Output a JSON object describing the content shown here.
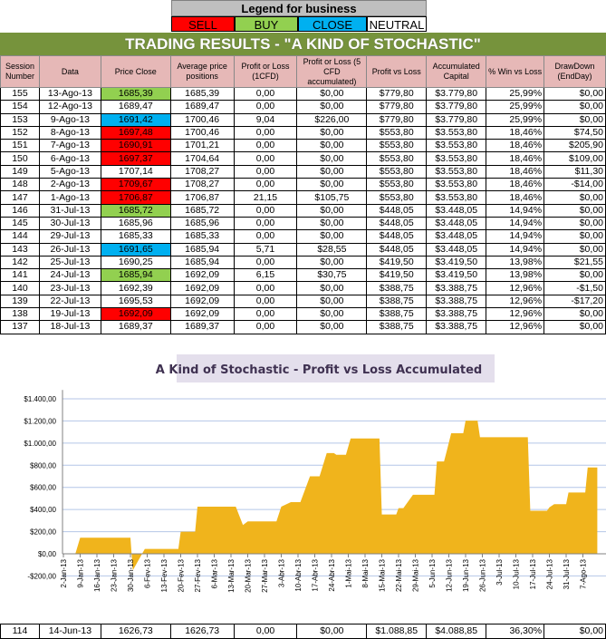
{
  "legend": {
    "title": "Legend for business",
    "items": [
      {
        "label": "SELL",
        "color": "#ff0000"
      },
      {
        "label": "BUY",
        "color": "#92d050"
      },
      {
        "label": "CLOSE",
        "color": "#00b0f0"
      },
      {
        "label": "NEUTRAL",
        "color": "#ffffff"
      }
    ]
  },
  "title": "TRADING RESULTS - \"A KIND OF STOCHASTIC\"",
  "headers": [
    "Session Number",
    "Data",
    "Price Close",
    "Average price positions",
    "Profit or Loss (1CFD)",
    "Profit or Loss (5 CFD accumulated)",
    "Profit vs Loss",
    "Accumulated Capital",
    "% Win vs Loss",
    "DrawDown (EndDay)"
  ],
  "rows": [
    {
      "cells": [
        "155",
        "13-Ago-13",
        "1685,39",
        "1685,39",
        "0,00",
        "$0,00",
        "$779,80",
        "$3.779,80",
        "25,99%",
        "$0,00"
      ],
      "signal": "BUY"
    },
    {
      "cells": [
        "154",
        "12-Ago-13",
        "1689,47",
        "1689,47",
        "0,00",
        "$0,00",
        "$779,80",
        "$3.779,80",
        "25,99%",
        "$0,00"
      ],
      "signal": "NEUTRAL"
    },
    {
      "cells": [
        "153",
        "9-Ago-13",
        "1691,42",
        "1700,46",
        "9,04",
        "$226,00",
        "$779,80",
        "$3.779,80",
        "25,99%",
        "$0,00"
      ],
      "signal": "CLOSE"
    },
    {
      "cells": [
        "152",
        "8-Ago-13",
        "1697,48",
        "1700,46",
        "0,00",
        "$0,00",
        "$553,80",
        "$3.553,80",
        "18,46%",
        "$74,50"
      ],
      "signal": "SELL"
    },
    {
      "cells": [
        "151",
        "7-Ago-13",
        "1690,91",
        "1701,21",
        "0,00",
        "$0,00",
        "$553,80",
        "$3.553,80",
        "18,46%",
        "$205,90"
      ],
      "signal": "SELL"
    },
    {
      "cells": [
        "150",
        "6-Ago-13",
        "1697,37",
        "1704,64",
        "0,00",
        "$0,00",
        "$553,80",
        "$3.553,80",
        "18,46%",
        "$109,00"
      ],
      "signal": "SELL"
    },
    {
      "cells": [
        "149",
        "5-Ago-13",
        "1707,14",
        "1708,27",
        "0,00",
        "$0,00",
        "$553,80",
        "$3.553,80",
        "18,46%",
        "$11,30"
      ],
      "signal": "NEUTRAL"
    },
    {
      "cells": [
        "148",
        "2-Ago-13",
        "1709,67",
        "1708,27",
        "0,00",
        "$0,00",
        "$553,80",
        "$3.553,80",
        "18,46%",
        "-$14,00"
      ],
      "signal": "SELL"
    },
    {
      "cells": [
        "147",
        "1-Ago-13",
        "1706,87",
        "1706,87",
        "21,15",
        "$105,75",
        "$553,80",
        "$3.553,80",
        "18,46%",
        "$0,00"
      ],
      "signal": "SELL"
    },
    {
      "cells": [
        "146",
        "31-Jul-13",
        "1685,72",
        "1685,72",
        "0,00",
        "$0,00",
        "$448,05",
        "$3.448,05",
        "14,94%",
        "$0,00"
      ],
      "signal": "BUY"
    },
    {
      "cells": [
        "145",
        "30-Jul-13",
        "1685,96",
        "1685,96",
        "0,00",
        "$0,00",
        "$448,05",
        "$3.448,05",
        "14,94%",
        "$0,00"
      ],
      "signal": "NEUTRAL"
    },
    {
      "cells": [
        "144",
        "29-Jul-13",
        "1685,33",
        "1685,33",
        "0,00",
        "$0,00",
        "$448,05",
        "$3.448,05",
        "14,94%",
        "$0,00"
      ],
      "signal": "NEUTRAL"
    },
    {
      "cells": [
        "143",
        "26-Jul-13",
        "1691,65",
        "1685,94",
        "5,71",
        "$28,55",
        "$448,05",
        "$3.448,05",
        "14,94%",
        "$0,00"
      ],
      "signal": "CLOSE"
    },
    {
      "cells": [
        "142",
        "25-Jul-13",
        "1690,25",
        "1685,94",
        "0,00",
        "$0,00",
        "$419,50",
        "$3.419,50",
        "13,98%",
        "$21,55"
      ],
      "signal": "NEUTRAL"
    },
    {
      "cells": [
        "141",
        "24-Jul-13",
        "1685,94",
        "1692,09",
        "6,15",
        "$30,75",
        "$419,50",
        "$3.419,50",
        "13,98%",
        "$0,00"
      ],
      "signal": "BUY"
    },
    {
      "cells": [
        "140",
        "23-Jul-13",
        "1692,39",
        "1692,09",
        "0,00",
        "$0,00",
        "$388,75",
        "$3.388,75",
        "12,96%",
        "-$1,50"
      ],
      "signal": "NEUTRAL"
    },
    {
      "cells": [
        "139",
        "22-Jul-13",
        "1695,53",
        "1692,09",
        "0,00",
        "$0,00",
        "$388,75",
        "$3.388,75",
        "12,96%",
        "-$17,20"
      ],
      "signal": "NEUTRAL"
    },
    {
      "cells": [
        "138",
        "19-Jul-13",
        "1692,09",
        "1692,09",
        "0,00",
        "$0,00",
        "$388,75",
        "$3.388,75",
        "12,96%",
        "$0,00"
      ],
      "signal": "SELL"
    },
    {
      "cells": [
        "137",
        "18-Jul-13",
        "1689,37",
        "1689,37",
        "0,00",
        "$0,00",
        "$388,75",
        "$3.388,75",
        "12,96%",
        "$0,00"
      ],
      "signal": "NEUTRAL"
    }
  ],
  "bottom_row": {
    "cells": [
      "114",
      "14-Jun-13",
      "1626,73",
      "1626,73",
      "0,00",
      "$0,00",
      "$1.088,85",
      "$4.088,85",
      "36,30%",
      "$0,00"
    ],
    "signal": "NEUTRAL"
  },
  "chart_data": {
    "type": "area",
    "title": "A Kind of Stochastic - Profit vs Loss Accumulated",
    "color": "#f0b41c",
    "ylim": [
      -200,
      1400
    ],
    "yticks": [
      "-$200,00",
      "$0,00",
      "$200,00",
      "$400,00",
      "$600,00",
      "$800,00",
      "$1.000,00",
      "$1.200,00",
      "$1.400,00"
    ],
    "xticks": [
      "2-Jan-13",
      "9-Jan-13",
      "16-Jan-13",
      "23-Jan-13",
      "30-Jan-13",
      "6-Fev-13",
      "13-Fev-13",
      "20-Fev-13",
      "27-Fev-13",
      "6-Mar-13",
      "13-Mar-13",
      "20-Mar-13",
      "27-Mar-13",
      "3-Abr-13",
      "10-Abr-13",
      "17-Abr-13",
      "24-Abr-13",
      "1-Mai-13",
      "8-Mai-13",
      "15-Mai-13",
      "22-Mai-13",
      "29-Mai-13",
      "5-Jun-13",
      "12-Jun-13",
      "19-Jun-13",
      "26-Jun-13",
      "3-Jul-13",
      "10-Jul-13",
      "17-Jul-13",
      "24-Jul-13",
      "31-Jul-13",
      "7-Ago-13"
    ],
    "grid": true,
    "points": [
      [
        "2013-01-07",
        0
      ],
      [
        "2013-01-09",
        145
      ],
      [
        "2013-01-30",
        145
      ],
      [
        "2013-01-31",
        -150
      ],
      [
        "2013-02-05",
        44
      ],
      [
        "2013-02-19",
        44
      ],
      [
        "2013-02-20",
        200
      ],
      [
        "2013-02-26",
        200
      ],
      [
        "2013-02-27",
        426
      ],
      [
        "2013-03-15",
        426
      ],
      [
        "2013-03-18",
        260
      ],
      [
        "2013-03-20",
        292
      ],
      [
        "2013-04-01",
        292
      ],
      [
        "2013-04-03",
        426
      ],
      [
        "2013-04-07",
        467
      ],
      [
        "2013-04-11",
        467
      ],
      [
        "2013-04-15",
        700
      ],
      [
        "2013-04-19",
        700
      ],
      [
        "2013-04-22",
        910
      ],
      [
        "2013-04-25",
        910
      ],
      [
        "2013-04-26",
        895
      ],
      [
        "2013-04-30",
        895
      ],
      [
        "2013-05-02",
        1042
      ],
      [
        "2013-05-14",
        1042
      ],
      [
        "2013-05-15",
        355
      ],
      [
        "2013-05-21",
        355
      ],
      [
        "2013-05-22",
        413
      ],
      [
        "2013-05-24",
        413
      ],
      [
        "2013-05-28",
        533
      ],
      [
        "2013-06-06",
        533
      ],
      [
        "2013-06-07",
        834
      ],
      [
        "2013-06-10",
        834
      ],
      [
        "2013-06-11",
        919
      ],
      [
        "2013-06-13",
        1088.85
      ],
      [
        "2013-06-18",
        1088.85
      ],
      [
        "2013-06-19",
        1203
      ],
      [
        "2013-06-24",
        1203
      ],
      [
        "2013-06-25",
        1053
      ],
      [
        "2013-07-15",
        1053
      ],
      [
        "2013-07-16",
        388.75
      ],
      [
        "2013-07-23",
        388.75
      ],
      [
        "2013-07-24",
        419.5
      ],
      [
        "2013-07-26",
        448.05
      ],
      [
        "2013-07-31",
        448.05
      ],
      [
        "2013-08-01",
        553.8
      ],
      [
        "2013-08-08",
        553.8
      ],
      [
        "2013-08-09",
        779.8
      ],
      [
        "2013-08-13",
        779.8
      ]
    ]
  }
}
